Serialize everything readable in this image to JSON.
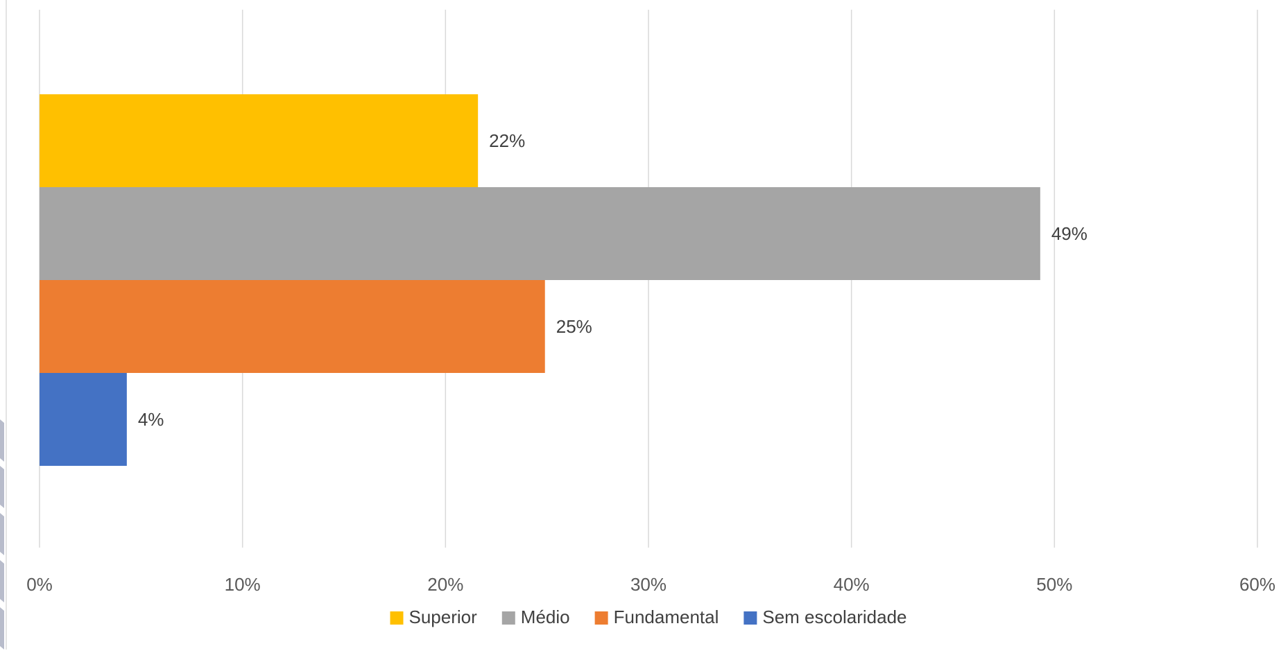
{
  "chart_data": {
    "type": "bar",
    "orientation": "horizontal",
    "title": "",
    "xlabel": "",
    "ylabel": "",
    "xlim": [
      0,
      0.6
    ],
    "x_ticks": [
      "0%",
      "10%",
      "20%",
      "30%",
      "40%",
      "50%",
      "60%"
    ],
    "x_tick_values": [
      0,
      0.1,
      0.2,
      0.3,
      0.4,
      0.5,
      0.6
    ],
    "grid": true,
    "legend_position": "bottom",
    "series": [
      {
        "name": "Superior",
        "value": 0.216,
        "label": "22%",
        "color": "#FFC000"
      },
      {
        "name": "Médio",
        "value": 0.493,
        "label": "49%",
        "color": "#A5A5A5"
      },
      {
        "name": "Fundamental",
        "value": 0.249,
        "label": "25%",
        "color": "#ED7D31"
      },
      {
        "name": "Sem escolaridade",
        "value": 0.043,
        "label": "4%",
        "color": "#4472C4"
      }
    ]
  }
}
